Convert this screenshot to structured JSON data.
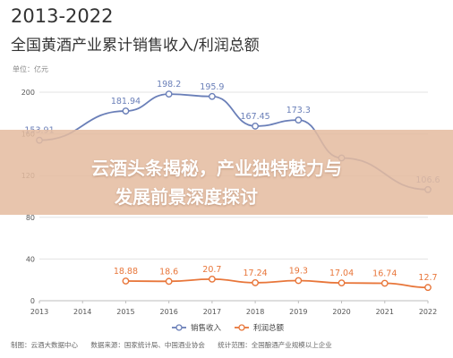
{
  "colors": {
    "sales": "#6a7fb8",
    "profit": "#e8763a",
    "grid": "#e3e3e3",
    "axis_text": "#555555",
    "banner": "#e4bca0"
  },
  "banner": {
    "line1": "云酒头条揭秘，产业独特魅力与",
    "line2": "发展前景深度探讨"
  },
  "chart_data": {
    "type": "line",
    "title": "2013-2022",
    "subtitle": "全国黄酒产业累计销售收入/利润总额",
    "unit_label": "单位：亿元",
    "x": [
      "2013",
      "2014",
      "2015",
      "2016",
      "2017",
      "2018",
      "2019",
      "2020",
      "2021",
      "2022"
    ],
    "ylim": [
      0,
      200
    ],
    "yticks": [
      0,
      40,
      80,
      120,
      160,
      200
    ],
    "grid": true,
    "legend_position": "bottom-center",
    "series": [
      {
        "name": "销售收入",
        "values": [
          153.91,
          null,
          181.94,
          198.2,
          195.9,
          167.45,
          173.3,
          136.9,
          null,
          106.6
        ],
        "labels": [
          "153.91",
          "",
          "181.94",
          "198.2",
          "195.9",
          "167.45",
          "173.3",
          "",
          "",
          "106.6"
        ]
      },
      {
        "name": "利润总额",
        "values": [
          null,
          null,
          18.88,
          18.6,
          20.7,
          17.24,
          19.3,
          17.04,
          16.74,
          12.7
        ],
        "labels": [
          "",
          "",
          "18.88",
          "18.6",
          "20.7",
          "17.24",
          "19.3",
          "17.04",
          "16.74",
          "12.7"
        ]
      }
    ]
  },
  "footer": {
    "producer": "制图：云酒大数据中心",
    "source": "数据来源：国家统计局、中国酒业协会",
    "note": "统计范围：全国酿酒产业规模以上企业"
  }
}
